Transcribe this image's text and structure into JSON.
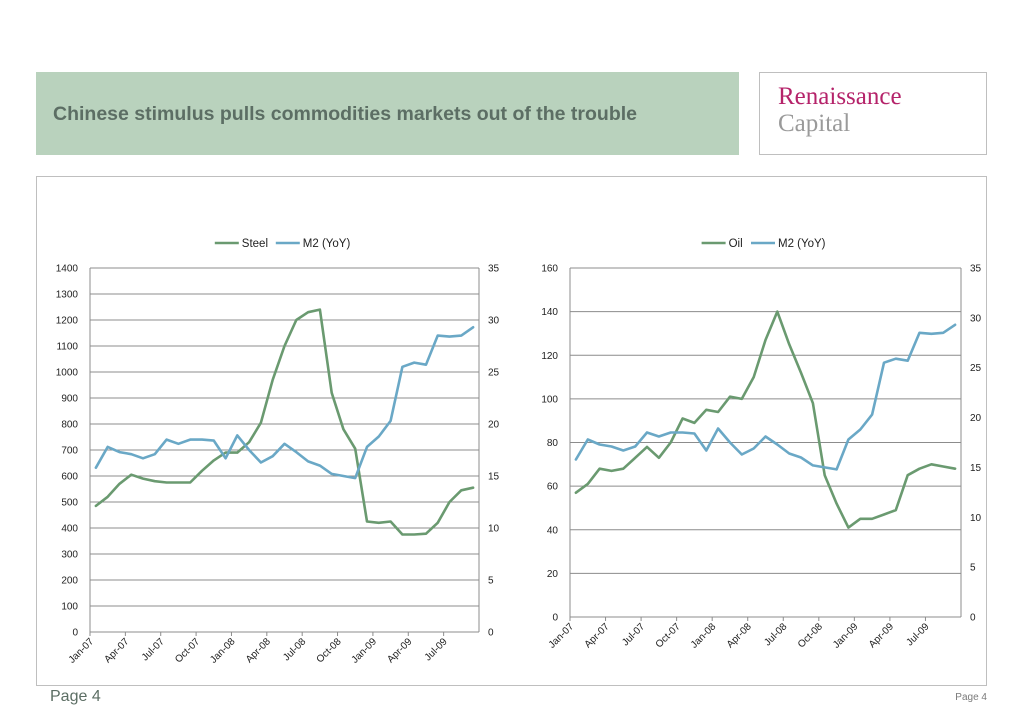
{
  "header": {
    "title": "Chinese stimulus pulls commodities markets out of the trouble"
  },
  "logo": {
    "line1": "Renaissance",
    "line2": "Capital"
  },
  "footer": {
    "left": "Page 4",
    "right": "Page 4"
  },
  "colors": {
    "primary": "#6a9a70",
    "secondary": "#6aa8c6"
  },
  "chart_data": [
    {
      "type": "line",
      "title": "",
      "x": [
        "Jan-07",
        "Feb-07",
        "Mar-07",
        "Apr-07",
        "May-07",
        "Jun-07",
        "Jul-07",
        "Aug-07",
        "Sep-07",
        "Oct-07",
        "Nov-07",
        "Dec-07",
        "Jan-08",
        "Feb-08",
        "Mar-08",
        "Apr-08",
        "May-08",
        "Jun-08",
        "Jul-08",
        "Aug-08",
        "Sep-08",
        "Oct-08",
        "Nov-08",
        "Dec-08",
        "Jan-09",
        "Feb-09",
        "Mar-09",
        "Apr-09",
        "May-09",
        "Jun-09",
        "Jul-09",
        "Aug-09",
        "Sep-09"
      ],
      "x_tick_labels": [
        "Jan-07",
        "Apr-07",
        "Jul-07",
        "Oct-07",
        "Jan-08",
        "Apr-08",
        "Jul-08",
        "Oct-08",
        "Jan-09",
        "Apr-09",
        "Jul-09"
      ],
      "y_left_ticks": [
        "0",
        "100",
        "200",
        "300",
        "400",
        "500",
        "600",
        "700",
        "800",
        "900",
        "1000",
        "1100",
        "1200",
        "1300",
        "1400"
      ],
      "y_right_ticks": [
        "0",
        "5",
        "10",
        "15",
        "20",
        "25",
        "30",
        "35"
      ],
      "ylim_left": [
        0,
        1400
      ],
      "ylim_right": [
        0,
        35
      ],
      "legend_position": "top",
      "grid": true,
      "series": [
        {
          "name": "Steel",
          "axis": "left",
          "values": [
            485,
            520,
            570,
            605,
            590,
            580,
            575,
            575,
            575,
            620,
            660,
            690,
            690,
            730,
            805,
            970,
            1100,
            1200,
            1230,
            1240,
            920,
            780,
            705,
            425,
            420,
            425,
            375,
            375,
            378,
            420,
            500,
            545,
            555
          ]
        },
        {
          "name": "M2 (YoY)",
          "axis": "right",
          "values": [
            15.8,
            17.8,
            17.3,
            17.1,
            16.7,
            17.1,
            18.5,
            18.1,
            18.5,
            18.5,
            18.4,
            16.7,
            18.9,
            17.5,
            16.3,
            16.9,
            18.1,
            17.3,
            16.4,
            16.0,
            15.2,
            15.0,
            14.8,
            17.8,
            18.8,
            20.3,
            25.5,
            25.9,
            25.7,
            28.5,
            28.4,
            28.5,
            29.3
          ]
        }
      ]
    },
    {
      "type": "line",
      "title": "",
      "x": [
        "Jan-07",
        "Feb-07",
        "Mar-07",
        "Apr-07",
        "May-07",
        "Jun-07",
        "Jul-07",
        "Aug-07",
        "Sep-07",
        "Oct-07",
        "Nov-07",
        "Dec-07",
        "Jan-08",
        "Feb-08",
        "Mar-08",
        "Apr-08",
        "May-08",
        "Jun-08",
        "Jul-08",
        "Aug-08",
        "Sep-08",
        "Oct-08",
        "Nov-08",
        "Dec-08",
        "Jan-09",
        "Feb-09",
        "Mar-09",
        "Apr-09",
        "May-09",
        "Jun-09",
        "Jul-09",
        "Aug-09",
        "Sep-09"
      ],
      "x_tick_labels": [
        "Jan-07",
        "Apr-07",
        "Jul-07",
        "Oct-07",
        "Jan-08",
        "Apr-08",
        "Jul-08",
        "Oct-08",
        "Jan-09",
        "Apr-09",
        "Jul-09"
      ],
      "y_left_ticks": [
        "0",
        "20",
        "40",
        "60",
        "80",
        "100",
        "120",
        "140",
        "160"
      ],
      "y_right_ticks": [
        "0",
        "5",
        "10",
        "15",
        "20",
        "25",
        "30",
        "35"
      ],
      "ylim_left": [
        0,
        160
      ],
      "ylim_right": [
        0,
        35
      ],
      "legend_position": "top",
      "grid": true,
      "series": [
        {
          "name": "Oil",
          "axis": "left",
          "values": [
            57,
            61,
            68,
            67,
            68,
            73,
            78,
            73,
            80,
            91,
            89,
            95,
            94,
            101,
            100,
            110,
            127,
            140,
            125,
            112,
            98,
            65,
            52,
            41,
            45,
            45,
            47,
            49,
            65,
            68,
            70,
            69,
            68
          ]
        },
        {
          "name": "M2 (YoY)",
          "axis": "right",
          "values": [
            15.8,
            17.8,
            17.3,
            17.1,
            16.7,
            17.1,
            18.5,
            18.1,
            18.5,
            18.5,
            18.4,
            16.7,
            18.9,
            17.5,
            16.3,
            16.9,
            18.1,
            17.3,
            16.4,
            16.0,
            15.2,
            15.0,
            14.8,
            17.8,
            18.8,
            20.3,
            25.5,
            25.9,
            25.7,
            28.5,
            28.4,
            28.5,
            29.3
          ]
        }
      ]
    }
  ]
}
